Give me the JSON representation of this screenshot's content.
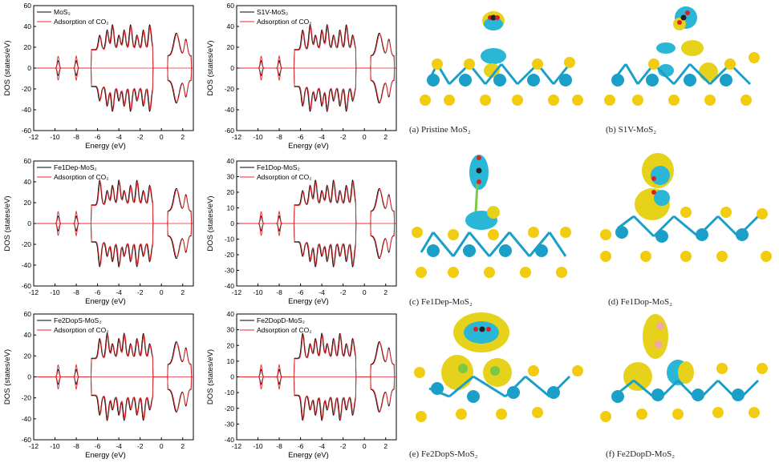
{
  "chart_data": [
    {
      "type": "line",
      "id": "a",
      "title": "",
      "legend": [
        "MoS₂",
        "Adsorption of CO₂"
      ],
      "xlabel": "Energy (eV)",
      "ylabel": "DOS (states/eV)",
      "xlim": [
        -12,
        3
      ],
      "ylim": [
        -60,
        60
      ],
      "xticks": [
        "-12",
        "-10",
        "-8",
        "-6",
        "-4",
        "-2",
        "0",
        "2"
      ],
      "yticks": [
        "-60",
        "-40",
        "-20",
        "0",
        "20",
        "40",
        "60"
      ],
      "series": [
        {
          "name": "MoS₂",
          "color": "#000000"
        },
        {
          "name": "Adsorption of CO₂",
          "color": "#e8262b"
        }
      ]
    },
    {
      "type": "line",
      "id": "b",
      "title": "",
      "legend": [
        "S1V-MoS₂",
        "Adsorption of CO₂"
      ],
      "xlabel": "Energy (eV)",
      "ylabel": "DOS (states/eV)",
      "xlim": [
        -12,
        3
      ],
      "ylim": [
        -60,
        60
      ],
      "xticks": [
        "-12",
        "-10",
        "-8",
        "-6",
        "-4",
        "-2",
        "0",
        "2"
      ],
      "yticks": [
        "-60",
        "-40",
        "-20",
        "0",
        "20",
        "40",
        "60"
      ],
      "series": [
        {
          "name": "S1V-MoS₂",
          "color": "#000000"
        },
        {
          "name": "Adsorption of CO₂",
          "color": "#e8262b"
        }
      ]
    },
    {
      "type": "line",
      "id": "c",
      "title": "",
      "legend": [
        "Fe1Dep-MoS₂",
        "Adsorption of CO₂"
      ],
      "xlabel": "Energy (eV)",
      "ylabel": "DOS (states/eV)",
      "xlim": [
        -12,
        3
      ],
      "ylim": [
        -60,
        60
      ],
      "xticks": [
        "-12",
        "-10",
        "-8",
        "-6",
        "-4",
        "-2",
        "0",
        "2"
      ],
      "yticks": [
        "-60",
        "-40",
        "-20",
        "0",
        "20",
        "40",
        "60"
      ],
      "series": [
        {
          "name": "Fe1Dep-MoS₂",
          "color": "#000000"
        },
        {
          "name": "Adsorption of CO₂",
          "color": "#e8262b"
        }
      ]
    },
    {
      "type": "line",
      "id": "d",
      "title": "",
      "legend": [
        "Fe1Dop-MoS₂",
        "Adsorption of CO₂"
      ],
      "xlabel": "Energy (eV)",
      "ylabel": "DOS (states/eV)",
      "xlim": [
        -12,
        3
      ],
      "ylim": [
        -40,
        40
      ],
      "xticks": [
        "-12",
        "-10",
        "-8",
        "-6",
        "-4",
        "-2",
        "0",
        "2"
      ],
      "yticks": [
        "-40",
        "-30",
        "-20",
        "-10",
        "0",
        "10",
        "20",
        "30",
        "40"
      ],
      "series": [
        {
          "name": "Fe1Dop-MoS₂",
          "color": "#000000"
        },
        {
          "name": "Adsorption of CO₂",
          "color": "#e8262b"
        }
      ]
    },
    {
      "type": "line",
      "id": "e",
      "title": "",
      "legend": [
        "Fe2DopS-MoS₂",
        "Adsorption of CO₂"
      ],
      "xlabel": "Energy (eV)",
      "ylabel": "DOS (states/eV)",
      "xlim": [
        -12,
        3
      ],
      "ylim": [
        -60,
        60
      ],
      "xticks": [
        "-12",
        "-10",
        "-8",
        "-6",
        "-4",
        "-2",
        "0",
        "2"
      ],
      "yticks": [
        "-60",
        "-40",
        "-20",
        "0",
        "20",
        "40",
        "60"
      ],
      "series": [
        {
          "name": "Fe2DopS-MoS₂",
          "color": "#000000"
        },
        {
          "name": "Adsorption of CO₂",
          "color": "#e8262b"
        }
      ]
    },
    {
      "type": "line",
      "id": "f",
      "title": "",
      "legend": [
        "Fe2DopD-MoS₂",
        "Adsorption of CO₂"
      ],
      "xlabel": "Energy (eV)",
      "ylabel": "DOS (states/eV)",
      "xlim": [
        -12,
        3
      ],
      "ylim": [
        -40,
        40
      ],
      "xticks": [
        "-12",
        "-10",
        "-8",
        "-6",
        "-4",
        "-2",
        "0",
        "2"
      ],
      "yticks": [
        "-40",
        "-30",
        "-20",
        "-10",
        "0",
        "10",
        "20",
        "30",
        "40"
      ],
      "series": [
        {
          "name": "Fe2DopD-MoS₂",
          "color": "#000000"
        },
        {
          "name": "Adsorption of CO₂",
          "color": "#e8262b"
        }
      ]
    }
  ],
  "structures": [
    {
      "id": "a",
      "caption": "(a) Pristine MoS₂"
    },
    {
      "id": "b",
      "caption": "(b) S1V-MoS₂"
    },
    {
      "id": "c",
      "caption": "(c) Fe1Dep-MoS₂"
    },
    {
      "id": "d",
      "caption": "(d) Fe1Dop-MoS₂"
    },
    {
      "id": "e",
      "caption": "(e) Fe2DopS-MoS₂"
    },
    {
      "id": "f",
      "caption": "(f) Fe2DopD-MoS₂"
    }
  ],
  "colors": {
    "black": "#000000",
    "red": "#e8262b",
    "mo": "#1aa0c8",
    "s": "#f2cc10",
    "fe": "#7ac943",
    "charge_pos": "#e6d21a",
    "charge_neg": "#2ab6d6"
  }
}
